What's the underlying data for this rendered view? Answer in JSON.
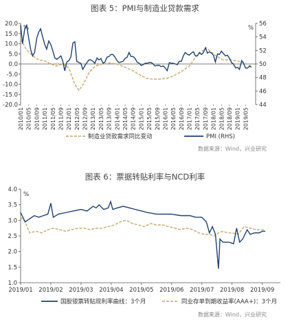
{
  "figures": [
    {
      "title": "图表 5：PMI与制造业贷款需求",
      "source": "数据来源：Wind，兴业研究"
    },
    {
      "title": "图表 6：票据转贴利率与NCD利率",
      "source": "数据来源：Wind，兴业研究"
    }
  ],
  "chart_data": [
    {
      "type": "line",
      "title": "图表 5：PMI与制造业贷款需求",
      "left_axis": {
        "unit": "%",
        "ylim": [
          -20,
          20
        ],
        "ticks": [
          "20.0",
          "15.0",
          "10.0",
          "5.0",
          "0.0",
          "-5.0",
          "-10.0",
          "-15.0",
          "-20.0"
        ]
      },
      "right_axis": {
        "unit": "%",
        "ylim": [
          44,
          56
        ],
        "ticks": [
          "56",
          "54",
          "52",
          "50",
          "48",
          "46",
          "44"
        ]
      },
      "x_tick_labels": [
        "2010/01",
        "2010/05",
        "2010/09",
        "2011/01",
        "2011/05",
        "2011/09",
        "2012/01",
        "2012/05",
        "2012/09",
        "2013/01",
        "2013/05",
        "2013/09",
        "2014/01",
        "2014/05",
        "2014/09",
        "2015/01",
        "2015/05",
        "2015/09",
        "2016/01",
        "2016/05",
        "2016/09",
        "2017/01",
        "2017/05",
        "2017/09",
        "2018/01",
        "2018/05",
        "2018/09",
        "2019/01",
        "2019/05"
      ],
      "grid": false,
      "legend_position": "bottom",
      "series": [
        {
          "name": "制造业贷款需求同比变动",
          "axis": "left",
          "color": "#c9b27c",
          "style": "dashed",
          "values": [
            [
              2010.0,
              12.0
            ],
            [
              2010.25,
              7.0
            ],
            [
              2010.5,
              4.0
            ],
            [
              2010.75,
              2.0
            ],
            [
              2011.0,
              1.5
            ],
            [
              2011.25,
              0.0
            ],
            [
              2011.5,
              -1.0
            ],
            [
              2011.75,
              0.0
            ],
            [
              2012.0,
              -2.0
            ],
            [
              2012.25,
              -10.0
            ],
            [
              2012.42,
              -13.0
            ],
            [
              2012.6,
              -10.0
            ],
            [
              2012.85,
              -4.0
            ],
            [
              2013.1,
              -1.0
            ],
            [
              2013.4,
              0.0
            ],
            [
              2013.7,
              0.5
            ],
            [
              2014.0,
              0.0
            ],
            [
              2014.3,
              -1.5
            ],
            [
              2014.6,
              -3.0
            ],
            [
              2014.9,
              -5.0
            ],
            [
              2015.2,
              -7.0
            ],
            [
              2015.5,
              -7.5
            ],
            [
              2015.8,
              -7.5
            ],
            [
              2016.1,
              -7.0
            ],
            [
              2016.4,
              -5.5
            ],
            [
              2016.7,
              -3.5
            ],
            [
              2017.0,
              -1.0
            ],
            [
              2017.3,
              4.0
            ],
            [
              2017.55,
              6.5
            ],
            [
              2017.7,
              8.0
            ],
            [
              2017.85,
              6.5
            ],
            [
              2018.1,
              4.0
            ],
            [
              2018.4,
              2.0
            ],
            [
              2018.7,
              2.0
            ],
            [
              2019.0,
              1.5
            ],
            [
              2019.3,
              0.5
            ],
            [
              2019.55,
              -1.0
            ]
          ]
        },
        {
          "name": "PMI (RHS)",
          "axis": "right",
          "color": "#1f3f6b",
          "style": "solid",
          "values": [
            [
              2010.0,
              55.8
            ],
            [
              2010.08,
              53.0
            ],
            [
              2010.17,
              55.2
            ],
            [
              2010.25,
              55.7
            ],
            [
              2010.33,
              53.9
            ],
            [
              2010.42,
              52.1
            ],
            [
              2010.5,
              51.2
            ],
            [
              2010.58,
              51.7
            ],
            [
              2010.67,
              53.8
            ],
            [
              2010.75,
              54.7
            ],
            [
              2010.83,
              55.2
            ],
            [
              2010.92,
              53.9
            ],
            [
              2011.0,
              52.9
            ],
            [
              2011.08,
              52.2
            ],
            [
              2011.17,
              53.4
            ],
            [
              2011.25,
              52.9
            ],
            [
              2011.33,
              52.0
            ],
            [
              2011.42,
              50.9
            ],
            [
              2011.5,
              50.7
            ],
            [
              2011.58,
              50.9
            ],
            [
              2011.67,
              51.2
            ],
            [
              2011.75,
              50.4
            ],
            [
              2011.83,
              49.0
            ],
            [
              2011.92,
              50.3
            ],
            [
              2012.0,
              50.5
            ],
            [
              2012.08,
              51.0
            ],
            [
              2012.17,
              53.1
            ],
            [
              2012.25,
              53.3
            ],
            [
              2012.33,
              50.4
            ],
            [
              2012.42,
              50.2
            ],
            [
              2012.5,
              50.1
            ],
            [
              2012.58,
              49.2
            ],
            [
              2012.67,
              49.8
            ],
            [
              2012.75,
              50.2
            ],
            [
              2012.83,
              50.6
            ],
            [
              2012.92,
              50.6
            ],
            [
              2013.0,
              50.4
            ],
            [
              2013.08,
              50.1
            ],
            [
              2013.17,
              50.9
            ],
            [
              2013.25,
              50.6
            ],
            [
              2013.33,
              50.8
            ],
            [
              2013.42,
              50.1
            ],
            [
              2013.5,
              50.3
            ],
            [
              2013.58,
              51.0
            ],
            [
              2013.67,
              51.1
            ],
            [
              2013.75,
              51.4
            ],
            [
              2013.83,
              51.4
            ],
            [
              2013.92,
              51.0
            ],
            [
              2014.0,
              50.5
            ],
            [
              2014.08,
              50.2
            ],
            [
              2014.17,
              50.3
            ],
            [
              2014.25,
              50.4
            ],
            [
              2014.33,
              50.8
            ],
            [
              2014.42,
              51.0
            ],
            [
              2014.5,
              51.7
            ],
            [
              2014.58,
              51.1
            ],
            [
              2014.67,
              51.1
            ],
            [
              2014.75,
              50.8
            ],
            [
              2014.83,
              50.3
            ],
            [
              2014.92,
              50.1
            ],
            [
              2015.0,
              49.8
            ],
            [
              2015.08,
              49.9
            ],
            [
              2015.17,
              50.1
            ],
            [
              2015.25,
              50.1
            ],
            [
              2015.33,
              50.2
            ],
            [
              2015.42,
              50.2
            ],
            [
              2015.5,
              50.0
            ],
            [
              2015.58,
              49.7
            ],
            [
              2015.67,
              49.8
            ],
            [
              2015.75,
              49.8
            ],
            [
              2015.83,
              49.6
            ],
            [
              2015.92,
              49.7
            ],
            [
              2016.0,
              49.4
            ],
            [
              2016.08,
              49.0
            ],
            [
              2016.17,
              50.2
            ],
            [
              2016.25,
              50.1
            ],
            [
              2016.33,
              50.1
            ],
            [
              2016.42,
              50.0
            ],
            [
              2016.5,
              49.9
            ],
            [
              2016.58,
              50.4
            ],
            [
              2016.67,
              50.4
            ],
            [
              2016.75,
              51.2
            ],
            [
              2016.83,
              51.7
            ],
            [
              2016.92,
              51.4
            ],
            [
              2017.0,
              51.3
            ],
            [
              2017.08,
              51.6
            ],
            [
              2017.17,
              51.8
            ],
            [
              2017.25,
              51.2
            ],
            [
              2017.33,
              51.2
            ],
            [
              2017.42,
              51.7
            ],
            [
              2017.5,
              51.4
            ],
            [
              2017.58,
              51.7
            ],
            [
              2017.67,
              52.4
            ],
            [
              2017.75,
              51.6
            ],
            [
              2017.83,
              51.8
            ],
            [
              2017.92,
              51.6
            ],
            [
              2018.0,
              51.3
            ],
            [
              2018.08,
              50.3
            ],
            [
              2018.17,
              51.5
            ],
            [
              2018.25,
              51.4
            ],
            [
              2018.33,
              51.9
            ],
            [
              2018.42,
              51.5
            ],
            [
              2018.5,
              51.2
            ],
            [
              2018.58,
              51.3
            ],
            [
              2018.67,
              50.8
            ],
            [
              2018.75,
              50.2
            ],
            [
              2018.83,
              50.0
            ],
            [
              2018.92,
              49.4
            ],
            [
              2019.0,
              49.5
            ],
            [
              2019.08,
              49.2
            ],
            [
              2019.17,
              50.5
            ],
            [
              2019.25,
              50.1
            ],
            [
              2019.33,
              49.4
            ],
            [
              2019.42,
              49.4
            ],
            [
              2019.5,
              49.7
            ],
            [
              2019.58,
              49.5
            ]
          ]
        }
      ]
    },
    {
      "type": "line",
      "title": "图表 6：票据转贴利率与NCD利率",
      "y_axis": {
        "unit": "%",
        "ylim": [
          1.0,
          4.0
        ],
        "ticks": [
          "4.0",
          "3.5",
          "3.0",
          "2.5",
          "2.0",
          "1.5",
          "1.0"
        ]
      },
      "x_tick_labels": [
        "2019/01",
        "2019/02",
        "2019/03",
        "2019/04",
        "2019/05",
        "2019/06",
        "2019/07",
        "2019/08",
        "2019/09"
      ],
      "grid": false,
      "legend_position": "bottom",
      "series": [
        {
          "name": "国股银票转贴现利率曲线：3个月",
          "color": "#1f3f6b",
          "style": "solid",
          "values": [
            [
              1.0,
              3.25
            ],
            [
              1.15,
              2.95
            ],
            [
              1.3,
              3.05
            ],
            [
              1.45,
              3.15
            ],
            [
              1.6,
              3.1
            ],
            [
              1.75,
              3.15
            ],
            [
              1.9,
              3.2
            ],
            [
              2.0,
              3.55
            ],
            [
              2.08,
              3.1
            ],
            [
              2.25,
              3.2
            ],
            [
              2.5,
              3.25
            ],
            [
              2.75,
              3.3
            ],
            [
              3.0,
              3.35
            ],
            [
              3.2,
              3.3
            ],
            [
              3.4,
              3.45
            ],
            [
              3.5,
              3.4
            ],
            [
              3.6,
              3.5
            ],
            [
              3.75,
              3.35
            ],
            [
              3.9,
              3.4
            ],
            [
              3.98,
              3.6
            ],
            [
              4.05,
              3.35
            ],
            [
              4.2,
              3.4
            ],
            [
              4.4,
              3.45
            ],
            [
              4.6,
              3.4
            ],
            [
              4.8,
              3.35
            ],
            [
              5.0,
              3.3
            ],
            [
              5.2,
              3.25
            ],
            [
              5.5,
              3.2
            ],
            [
              5.8,
              3.2
            ],
            [
              6.0,
              3.2
            ],
            [
              6.3,
              3.15
            ],
            [
              6.6,
              3.15
            ],
            [
              6.8,
              3.1
            ],
            [
              7.0,
              3.1
            ],
            [
              7.15,
              2.95
            ],
            [
              7.25,
              2.6
            ],
            [
              7.35,
              2.8
            ],
            [
              7.45,
              2.55
            ],
            [
              7.55,
              1.45
            ],
            [
              7.6,
              2.4
            ],
            [
              7.7,
              2.3
            ],
            [
              7.9,
              2.3
            ],
            [
              8.05,
              2.25
            ],
            [
              8.15,
              2.75
            ],
            [
              8.25,
              2.3
            ],
            [
              8.35,
              2.4
            ],
            [
              8.5,
              2.7
            ],
            [
              8.6,
              2.55
            ],
            [
              8.75,
              2.6
            ],
            [
              8.9,
              2.6
            ],
            [
              9.0,
              2.65
            ],
            [
              9.1,
              2.65
            ]
          ]
        },
        {
          "name": "同业存单到期收益率(AAA+)：3个月",
          "color": "#c9b27c",
          "style": "dashed",
          "values": [
            [
              1.0,
              3.1
            ],
            [
              1.15,
              2.95
            ],
            [
              1.3,
              2.6
            ],
            [
              1.5,
              2.65
            ],
            [
              1.7,
              2.6
            ],
            [
              1.9,
              2.7
            ],
            [
              2.1,
              2.75
            ],
            [
              2.3,
              2.7
            ],
            [
              2.5,
              2.65
            ],
            [
              2.7,
              2.7
            ],
            [
              2.9,
              2.75
            ],
            [
              3.1,
              2.75
            ],
            [
              3.3,
              2.7
            ],
            [
              3.5,
              2.75
            ],
            [
              3.7,
              2.75
            ],
            [
              3.9,
              2.8
            ],
            [
              4.1,
              2.85
            ],
            [
              4.3,
              2.95
            ],
            [
              4.5,
              3.0
            ],
            [
              4.7,
              2.9
            ],
            [
              4.9,
              2.85
            ],
            [
              5.1,
              2.8
            ],
            [
              5.3,
              2.9
            ],
            [
              5.5,
              2.85
            ],
            [
              5.7,
              2.85
            ],
            [
              5.9,
              2.8
            ],
            [
              6.1,
              2.75
            ],
            [
              6.3,
              2.7
            ],
            [
              6.5,
              2.75
            ],
            [
              6.7,
              2.7
            ],
            [
              6.9,
              2.6
            ],
            [
              7.1,
              2.55
            ],
            [
              7.25,
              2.55
            ],
            [
              7.4,
              2.5
            ],
            [
              7.55,
              2.6
            ],
            [
              7.7,
              2.65
            ],
            [
              7.85,
              2.6
            ],
            [
              8.0,
              2.6
            ],
            [
              8.2,
              2.55
            ],
            [
              8.4,
              2.8
            ],
            [
              8.6,
              2.75
            ],
            [
              8.8,
              2.7
            ],
            [
              9.0,
              2.7
            ],
            [
              9.1,
              2.7
            ]
          ]
        }
      ]
    }
  ]
}
